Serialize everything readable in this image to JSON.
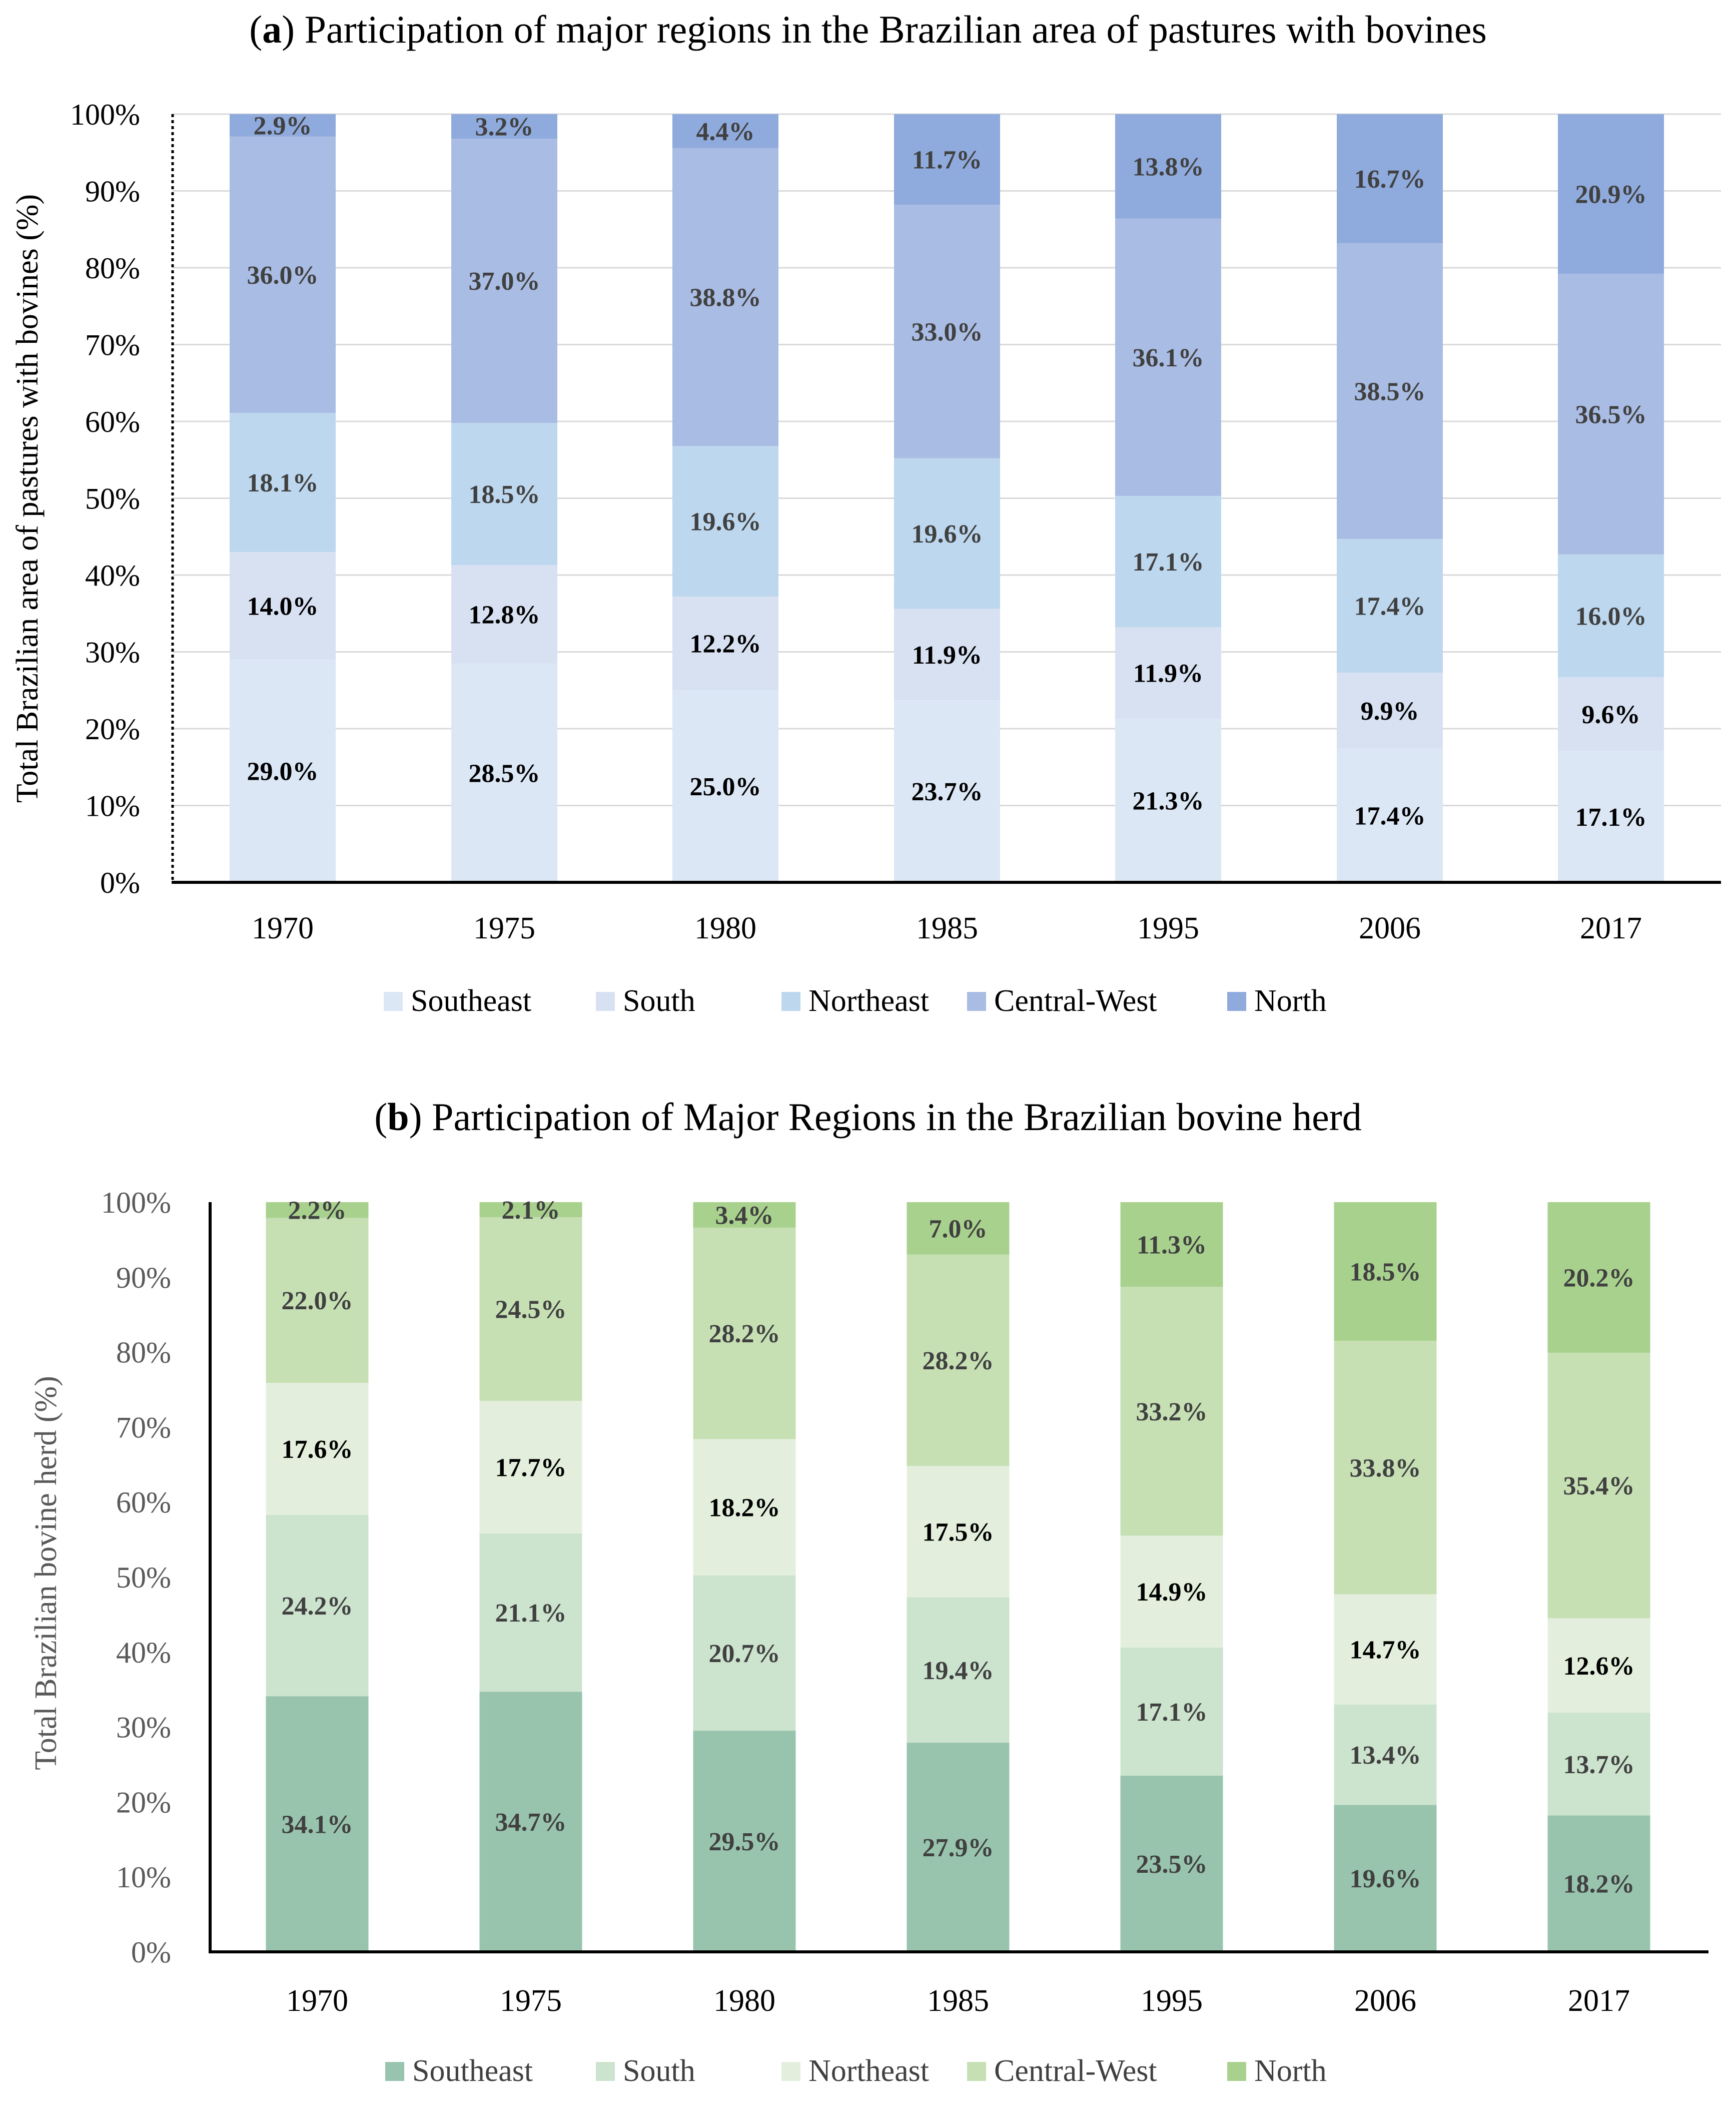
{
  "chart_data": [
    {
      "type": "bar",
      "stacked": true,
      "title_letter": "a",
      "title_open": "(",
      "title_rest": ") Participation of major regions in the Brazilian area of pastures with bovines",
      "ylabel": "Total Brazilian area of pastures with bovines (%)",
      "xlabel": "",
      "ylim": [
        0,
        100
      ],
      "yticks": [
        "0%",
        "10%",
        "20%",
        "30%",
        "40%",
        "50%",
        "60%",
        "70%",
        "80%",
        "90%",
        "100%"
      ],
      "categories": [
        "1970",
        "1975",
        "1980",
        "1985",
        "1995",
        "2006",
        "2017"
      ],
      "legend_position": "bottom",
      "grid": true,
      "series": [
        {
          "name": "Southeast",
          "color": "#DCE7F5",
          "label_color": "#000000",
          "values": [
            29.0,
            28.5,
            25.0,
            23.7,
            21.3,
            17.4,
            17.1
          ],
          "labels": [
            "29.0%",
            "28.5%",
            "25.0%",
            "23.7%",
            "21.3%",
            "17.4%",
            "17.1%"
          ]
        },
        {
          "name": "South",
          "color": "#D8E1F2",
          "label_color": "#000000",
          "values": [
            14.0,
            12.8,
            12.2,
            11.9,
            11.9,
            9.9,
            9.6
          ],
          "labels": [
            "14.0%",
            "12.8%",
            "12.2%",
            "11.9%",
            "11.9%",
            "9.9%",
            "9.6%"
          ]
        },
        {
          "name": "Northeast",
          "color": "#BDD7EE",
          "label_color": "#404040",
          "values": [
            18.1,
            18.5,
            19.6,
            19.6,
            17.1,
            17.4,
            16.0
          ],
          "labels": [
            "18.1%",
            "18.5%",
            "19.6%",
            "19.6%",
            "17.1%",
            "17.4%",
            "16.0%"
          ]
        },
        {
          "name": "Central-West",
          "color": "#A9BCE3",
          "label_color": "#404040",
          "values": [
            36.0,
            37.0,
            38.8,
            33.0,
            36.1,
            38.5,
            36.5
          ],
          "labels": [
            "36.0%",
            "37.0%",
            "38.8%",
            "33.0%",
            "36.1%",
            "38.5%",
            "36.5%"
          ]
        },
        {
          "name": "North",
          "color": "#8FAADC",
          "label_color": "#404040",
          "values": [
            2.9,
            3.2,
            4.4,
            11.7,
            13.8,
            16.7,
            20.9
          ],
          "labels": [
            "2.9%",
            "3.2%",
            "4.4%",
            "11.7%",
            "13.8%",
            "16.7%",
            "20.9%"
          ]
        }
      ]
    },
    {
      "type": "bar",
      "stacked": true,
      "title_letter": "b",
      "title_open": "(",
      "title_rest": ") Participation of Major Regions in the Brazilian bovine herd",
      "ylabel": "Total Brazilian bovine  herd (%)",
      "xlabel": "",
      "ylim": [
        0,
        100
      ],
      "yticks": [
        "0%",
        "10%",
        "20%",
        "30%",
        "40%",
        "50%",
        "60%",
        "70%",
        "80%",
        "90%",
        "100%"
      ],
      "categories": [
        "1970",
        "1975",
        "1980",
        "1985",
        "1995",
        "2006",
        "2017"
      ],
      "legend_position": "bottom",
      "grid": false,
      "series": [
        {
          "name": "Southeast",
          "color": "#98C4AE",
          "label_color": "#404040",
          "values": [
            34.1,
            34.7,
            29.5,
            27.9,
            23.5,
            19.6,
            18.2
          ],
          "labels": [
            "34.1%",
            "34.7%",
            "29.5%",
            "27.9%",
            "23.5%",
            "19.6%",
            "18.2%"
          ]
        },
        {
          "name": "South",
          "color": "#CCE3CE",
          "label_color": "#404040",
          "values": [
            24.2,
            21.1,
            20.7,
            19.4,
            17.1,
            13.4,
            13.7
          ],
          "labels": [
            "24.2%",
            "21.1%",
            "20.7%",
            "19.4%",
            "17.1%",
            "13.4%",
            "13.7%"
          ]
        },
        {
          "name": "Northeast",
          "color": "#E3EFDC",
          "label_color": "#000000",
          "values": [
            17.6,
            17.7,
            18.2,
            17.5,
            14.9,
            14.7,
            12.6
          ],
          "labels": [
            "17.6%",
            "17.7%",
            "18.2%",
            "17.5%",
            "14.9%",
            "14.7%",
            "12.6%"
          ]
        },
        {
          "name": "Central-West",
          "color": "#C6E0B4",
          "label_color": "#404040",
          "values": [
            22.0,
            24.5,
            28.2,
            28.2,
            33.2,
            33.8,
            35.4
          ],
          "labels": [
            "22.0%",
            "24.5%",
            "28.2%",
            "28.2%",
            "33.2%",
            "33.8%",
            "35.4%"
          ]
        },
        {
          "name": "North",
          "color": "#A9D18E",
          "label_color": "#404040",
          "values": [
            2.2,
            2.1,
            3.4,
            7.0,
            11.3,
            18.5,
            20.2
          ],
          "labels": [
            "2.2%",
            "2.1%",
            "3.4%",
            "7.0%",
            "11.3%",
            "18.5%",
            "20.2%"
          ]
        }
      ]
    }
  ]
}
